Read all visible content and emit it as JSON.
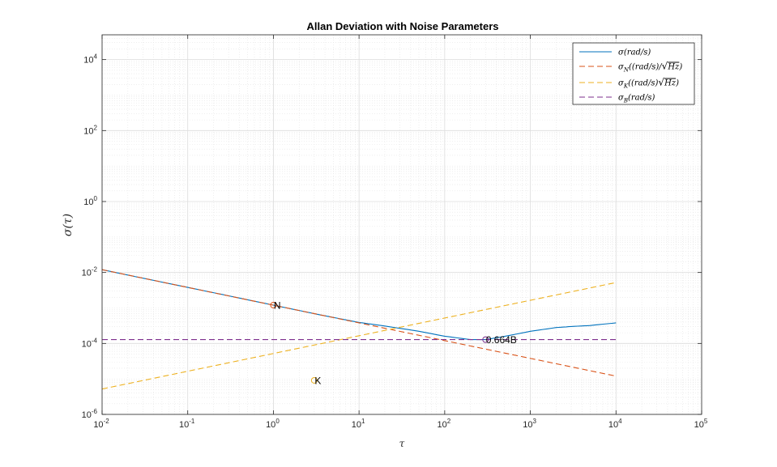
{
  "chart_data": {
    "type": "line",
    "title": "Allan Deviation with Noise Parameters",
    "xlabel": "τ",
    "ylabel": "σ(τ)",
    "x_scale": "log",
    "y_scale": "log",
    "xlim": [
      0.01,
      100000
    ],
    "ylim": [
      1e-06,
      50000
    ],
    "x_ticks": [
      {
        "base": "10",
        "exp": "-2"
      },
      {
        "base": "10",
        "exp": "-1"
      },
      {
        "base": "10",
        "exp": "0"
      },
      {
        "base": "10",
        "exp": "1"
      },
      {
        "base": "10",
        "exp": "2"
      },
      {
        "base": "10",
        "exp": "3"
      },
      {
        "base": "10",
        "exp": "4"
      },
      {
        "base": "10",
        "exp": "5"
      }
    ],
    "y_ticks": [
      {
        "base": "10",
        "exp": "-6"
      },
      {
        "base": "10",
        "exp": "-4"
      },
      {
        "base": "10",
        "exp": "-2"
      },
      {
        "base": "10",
        "exp": "0"
      },
      {
        "base": "10",
        "exp": "2"
      },
      {
        "base": "10",
        "exp": "4"
      }
    ],
    "grid": true,
    "minor_grid": true,
    "legend_position": "top-right",
    "series": [
      {
        "name": "σ(rad/s)",
        "style": "solid",
        "color": "#0072BD",
        "x": [
          0.01,
          0.03,
          0.1,
          0.3,
          1,
          3,
          10,
          20,
          50,
          100,
          200,
          300,
          500,
          1000,
          2000,
          3000,
          5000,
          10000
        ],
        "y": [
          0.012,
          0.0069,
          0.0038,
          0.0022,
          0.0012,
          0.00069,
          0.00039,
          0.00031,
          0.00022,
          0.00016,
          0.000128,
          0.000128,
          0.000158,
          0.00022,
          0.00028,
          0.0003,
          0.00032,
          0.00038
        ]
      },
      {
        "name": "σN((rad/s)/√Hz)",
        "legend_main": "σ",
        "legend_sub": "N",
        "legend_rest": "((rad/s)/",
        "legend_root": "Hz",
        "legend_close": ")",
        "style": "dashed",
        "color": "#D95319",
        "x": [
          0.01,
          10000
        ],
        "y": [
          0.012,
          1.2e-05
        ]
      },
      {
        "name": "σK((rad/s)√Hz)",
        "legend_main": "σ",
        "legend_sub": "K",
        "legend_rest": "((rad/s)",
        "legend_root": "Hz",
        "legend_close": ")",
        "style": "dashed",
        "color": "#EDB120",
        "x": [
          0.01,
          10000
        ],
        "y": [
          5.2e-06,
          0.0052
        ]
      },
      {
        "name": "σB(rad/s)",
        "legend_main": "σ",
        "legend_sub": "B",
        "legend_rest": "(rad/s)",
        "style": "dashed",
        "color": "#7E2F8E",
        "x": [
          0.01,
          10000
        ],
        "y": [
          0.000128,
          0.000128
        ]
      }
    ],
    "legend_first": {
      "main": "σ",
      "rest": "(rad/s)"
    },
    "annotations": [
      {
        "label": "N",
        "x": 1,
        "y": 0.0012,
        "color": "#D95319"
      },
      {
        "label": "K",
        "x": 3,
        "y": 9.1e-06,
        "color": "#EDB120"
      },
      {
        "label": "0.664B",
        "x": 300,
        "y": 0.000128,
        "color": "#7E2F8E"
      }
    ]
  }
}
